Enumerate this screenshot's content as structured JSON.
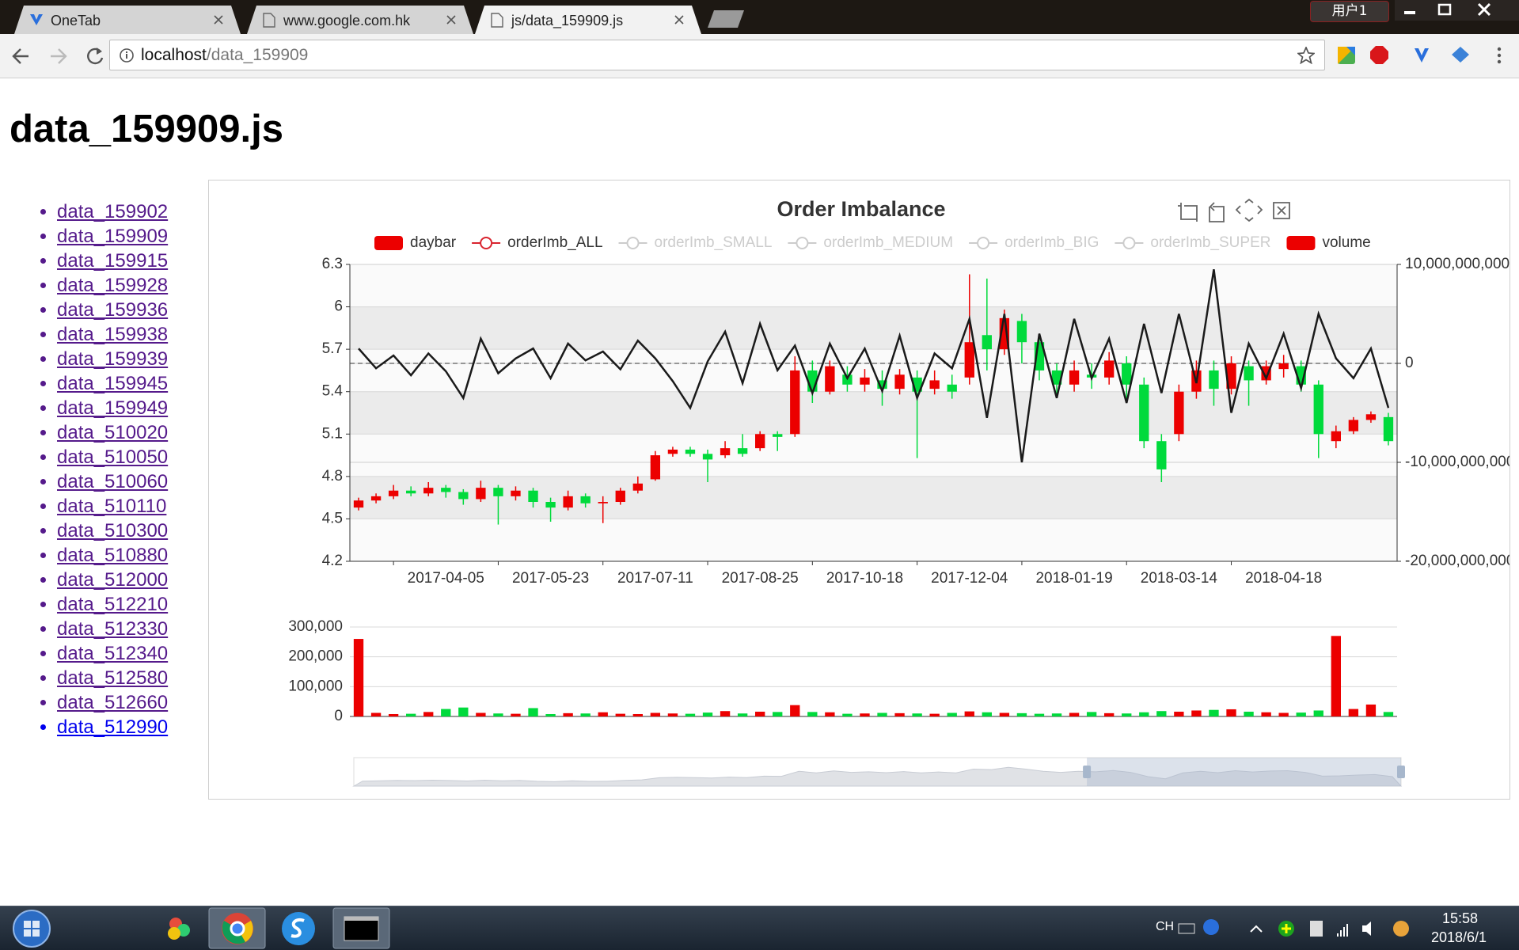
{
  "browser": {
    "tabs": [
      "OneTab",
      "www.google.com.hk",
      "js/data_159909.js"
    ],
    "user": "用户1",
    "url": {
      "host": "localhost",
      "path": "/data_159909"
    }
  },
  "page": {
    "heading": "data_159909.js",
    "links": [
      {
        "text": "data_159902",
        "visited": true
      },
      {
        "text": "data_159909",
        "visited": true
      },
      {
        "text": "data_159915",
        "visited": true
      },
      {
        "text": "data_159928",
        "visited": true
      },
      {
        "text": "data_159936",
        "visited": true
      },
      {
        "text": "data_159938",
        "visited": true
      },
      {
        "text": "data_159939",
        "visited": true
      },
      {
        "text": "data_159945",
        "visited": true
      },
      {
        "text": "data_159949",
        "visited": true
      },
      {
        "text": "data_510020",
        "visited": true
      },
      {
        "text": "data_510050",
        "visited": true
      },
      {
        "text": "data_510060",
        "visited": true
      },
      {
        "text": "data_510110",
        "visited": true
      },
      {
        "text": "data_510300",
        "visited": true
      },
      {
        "text": "data_510880",
        "visited": true
      },
      {
        "text": "data_512000",
        "visited": true
      },
      {
        "text": "data_512210",
        "visited": true
      },
      {
        "text": "data_512330",
        "visited": true
      },
      {
        "text": "data_512340",
        "visited": true
      },
      {
        "text": "data_512580",
        "visited": true
      },
      {
        "text": "data_512660",
        "visited": true
      },
      {
        "text": "data_512990",
        "visited": false
      }
    ]
  },
  "chart_data": {
    "type": "candlestick",
    "title": "Order Imbalance",
    "categories": [
      null,
      null,
      null,
      null,
      null,
      "2017-04-05",
      null,
      null,
      null,
      null,
      null,
      "2017-05-23",
      null,
      null,
      null,
      null,
      null,
      "2017-07-11",
      null,
      null,
      null,
      null,
      null,
      "2017-08-25",
      null,
      null,
      null,
      null,
      null,
      "2017-10-18",
      null,
      null,
      null,
      null,
      null,
      "2017-12-04",
      null,
      null,
      null,
      null,
      null,
      "2018-01-19",
      null,
      null,
      null,
      null,
      null,
      "2018-03-14",
      null,
      null,
      null,
      null,
      null,
      "2018-04-18",
      null,
      null,
      null,
      null,
      null,
      null
    ],
    "series": [
      {
        "name": "daybar",
        "type": "candlestick",
        "color": "#ec0000",
        "down_color": "#00da3c",
        "legend_icon": "rect",
        "selected": true,
        "open": [
          4.58,
          4.63,
          4.66,
          4.7,
          4.68,
          4.72,
          4.69,
          4.64,
          4.72,
          4.66,
          4.7,
          4.62,
          4.58,
          4.66,
          4.61,
          4.62,
          4.7,
          4.78,
          4.96,
          4.99,
          4.96,
          4.95,
          5.0,
          5.0,
          5.1,
          5.1,
          5.55,
          5.4,
          5.52,
          5.45,
          5.48,
          5.42,
          5.5,
          5.42,
          5.45,
          5.5,
          5.8,
          5.7,
          5.9,
          5.75,
          5.55,
          5.45,
          5.52,
          5.5,
          5.6,
          5.45,
          5.05,
          5.1,
          5.4,
          5.55,
          5.42,
          5.58,
          5.48,
          5.56,
          5.58,
          5.45,
          5.05,
          5.12,
          5.2,
          5.22
        ],
        "close": [
          4.63,
          4.66,
          4.7,
          4.68,
          4.72,
          4.69,
          4.64,
          4.72,
          4.66,
          4.7,
          4.62,
          4.58,
          4.66,
          4.61,
          4.62,
          4.7,
          4.75,
          4.95,
          4.99,
          4.96,
          4.92,
          5.0,
          4.96,
          5.1,
          5.08,
          5.55,
          5.4,
          5.58,
          5.45,
          5.5,
          5.42,
          5.52,
          5.4,
          5.48,
          5.4,
          5.75,
          5.7,
          5.92,
          5.75,
          5.55,
          5.45,
          5.55,
          5.5,
          5.62,
          5.45,
          5.05,
          4.85,
          5.4,
          5.55,
          5.42,
          5.6,
          5.48,
          5.58,
          5.6,
          5.45,
          5.1,
          5.12,
          5.2,
          5.24,
          5.05
        ],
        "low": [
          4.56,
          4.61,
          4.64,
          4.66,
          4.66,
          4.65,
          4.6,
          4.62,
          4.46,
          4.63,
          4.58,
          4.48,
          4.56,
          4.58,
          4.47,
          4.6,
          4.68,
          4.77,
          4.94,
          4.94,
          4.76,
          4.93,
          4.94,
          4.98,
          4.98,
          5.08,
          5.32,
          5.38,
          5.4,
          5.4,
          5.3,
          5.38,
          4.93,
          5.38,
          5.35,
          5.45,
          5.55,
          5.66,
          5.6,
          5.48,
          5.38,
          5.4,
          5.42,
          5.45,
          5.35,
          5.0,
          4.76,
          5.05,
          5.35,
          5.3,
          5.38,
          5.3,
          5.45,
          5.5,
          5.4,
          4.93,
          5.0,
          5.1,
          5.18,
          5.02
        ],
        "high": [
          4.65,
          4.68,
          4.74,
          4.73,
          4.76,
          4.74,
          4.71,
          4.77,
          4.74,
          4.73,
          4.72,
          4.65,
          4.7,
          4.68,
          4.66,
          4.72,
          4.8,
          4.98,
          5.01,
          5.01,
          4.99,
          5.05,
          5.1,
          5.12,
          5.12,
          5.65,
          5.62,
          5.62,
          5.58,
          5.56,
          5.55,
          5.56,
          5.55,
          5.55,
          5.52,
          6.23,
          6.2,
          5.98,
          5.95,
          5.8,
          5.6,
          5.62,
          5.6,
          5.68,
          5.65,
          5.5,
          5.1,
          5.45,
          5.62,
          5.62,
          5.65,
          5.62,
          5.62,
          5.66,
          5.62,
          5.48,
          5.16,
          5.22,
          5.26,
          5.25
        ]
      },
      {
        "name": "orderImb_ALL",
        "type": "line",
        "axis": "y2",
        "color": "#d9242e",
        "line_color": "#1a1a1a",
        "legend_icon": "line",
        "selected": true,
        "values": [
          1500000000.0,
          -500000000.0,
          800000000.0,
          -1200000000.0,
          1000000000.0,
          -800000000.0,
          -3500000000.0,
          2500000000.0,
          -1000000000.0,
          500000000.0,
          1500000000.0,
          -1500000000.0,
          2000000000.0,
          300000000.0,
          1200000000.0,
          -600000000.0,
          2300000000.0,
          500000000.0,
          -1800000000.0,
          -4500000000.0,
          200000000.0,
          3200000000.0,
          -2000000000.0,
          4000000000.0,
          -700000000.0,
          1800000000.0,
          -3000000000.0,
          2000000000.0,
          -1500000000.0,
          1500000000.0,
          -2800000000.0,
          2800000000.0,
          -3500000000.0,
          1000000000.0,
          -500000000.0,
          4500000000.0,
          -5500000000.0,
          5000000000.0,
          -10000000000.0,
          3000000000.0,
          -3500000000.0,
          4500000000.0,
          -1500000000.0,
          2500000000.0,
          -4000000000.0,
          4000000000.0,
          -3000000000.0,
          5000000000.0,
          -2000000000.0,
          9500000000.0,
          -5000000000.0,
          2000000000.0,
          -1500000000.0,
          3000000000.0,
          -2500000000.0,
          5000000000.0,
          500000000.0,
          -1500000000.0,
          1500000000.0,
          -4500000000.0
        ]
      },
      {
        "name": "orderImb_SMALL",
        "type": "line",
        "legend_icon": "line",
        "selected": false
      },
      {
        "name": "orderImb_MEDIUM",
        "type": "line",
        "legend_icon": "line",
        "selected": false
      },
      {
        "name": "orderImb_BIG",
        "type": "line",
        "legend_icon": "line",
        "selected": false
      },
      {
        "name": "orderImb_SUPER",
        "type": "line",
        "legend_icon": "line",
        "selected": false
      },
      {
        "name": "volume",
        "type": "bar",
        "panel": "bottom",
        "color": "#ec0000",
        "legend_icon": "rect",
        "selected": true,
        "values": [
          260000,
          12000,
          8000,
          9000,
          15000,
          25000,
          30000,
          12000,
          10000,
          9000,
          28000,
          8000,
          11000,
          10000,
          14000,
          9000,
          8000,
          12000,
          10000,
          9000,
          13000,
          18000,
          10000,
          16000,
          15000,
          38000,
          15000,
          14000,
          9000,
          10000,
          12000,
          11000,
          10000,
          9000,
          12000,
          17000,
          14000,
          12000,
          11000,
          9000,
          10000,
          12000,
          15000,
          11000,
          10000,
          14000,
          18000,
          16000,
          20000,
          22000,
          24000,
          16000,
          14000,
          12000,
          13000,
          20000,
          270000,
          25000,
          40000,
          15000
        ]
      }
    ],
    "ylim": [
      4.2,
      6.3
    ],
    "yticks": [
      4.2,
      4.5,
      4.8,
      5.1,
      5.4,
      5.7,
      6,
      6.3
    ],
    "y2lim": [
      -20000000000,
      10000000000
    ],
    "y2ticks": [
      {
        "value": -20000000000,
        "label": "-20,000,000,000"
      },
      {
        "value": -10000000000,
        "label": "-10,000,000,000"
      },
      0,
      {
        "value": 10000000000,
        "label": "10,000,000,000"
      }
    ],
    "volume_ylim": [
      0,
      300000
    ],
    "volume_yticks": [
      0,
      {
        "value": 100000,
        "label": "100,000"
      },
      {
        "value": 200000,
        "label": "200,000"
      },
      {
        "value": 300000,
        "label": "300,000"
      }
    ],
    "split_area": true,
    "mark_line": {
      "axis": "y2",
      "value": 0,
      "style": "dashed"
    },
    "data_zoom": {
      "start": 70,
      "end": 100
    }
  },
  "taskbar": {
    "language": "CH",
    "time": "15:58",
    "date": "2018/6/1"
  }
}
